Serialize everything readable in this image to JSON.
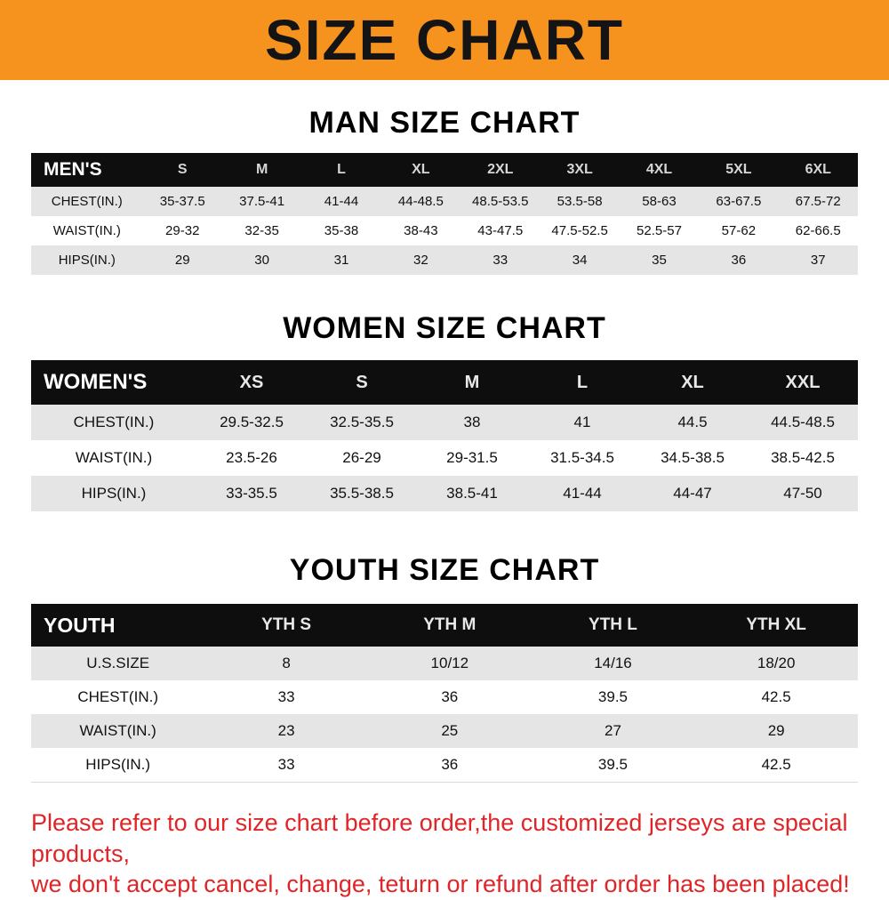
{
  "banner": {
    "title": "SIZE CHART",
    "bg_color": "#F6921E"
  },
  "headings": {
    "men": "MAN SIZE CHART",
    "women": "WOMEN SIZE CHART",
    "youth": "YOUTH SIZE CHART"
  },
  "tables": [
    {
      "key": "mens",
      "header_label": "MEN'S",
      "columns": [
        "S",
        "M",
        "L",
        "XL",
        "2XL",
        "3XL",
        "4XL",
        "5XL",
        "6XL"
      ],
      "rows": [
        {
          "label": "CHEST(IN.)",
          "values": [
            "35-37.5",
            "37.5-41",
            "41-44",
            "44-48.5",
            "48.5-53.5",
            "53.5-58",
            "58-63",
            "63-67.5",
            "67.5-72"
          ]
        },
        {
          "label": "WAIST(IN.)",
          "values": [
            "29-32",
            "32-35",
            "35-38",
            "38-43",
            "43-47.5",
            "47.5-52.5",
            "52.5-57",
            "57-62",
            "62-66.5"
          ]
        },
        {
          "label": "HIPS(IN.)",
          "values": [
            "29",
            "30",
            "31",
            "32",
            "33",
            "34",
            "35",
            "36",
            "37"
          ]
        }
      ]
    },
    {
      "key": "womens",
      "header_label": "WOMEN'S",
      "columns": [
        "XS",
        "S",
        "M",
        "L",
        "XL",
        "XXL"
      ],
      "rows": [
        {
          "label": "CHEST(IN.)",
          "values": [
            "29.5-32.5",
            "32.5-35.5",
            "38",
            "41",
            "44.5",
            "44.5-48.5"
          ]
        },
        {
          "label": "WAIST(IN.)",
          "values": [
            "23.5-26",
            "26-29",
            "29-31.5",
            "31.5-34.5",
            "34.5-38.5",
            "38.5-42.5"
          ]
        },
        {
          "label": "HIPS(IN.)",
          "values": [
            "33-35.5",
            "35.5-38.5",
            "38.5-41",
            "41-44",
            "44-47",
            "47-50"
          ]
        }
      ]
    },
    {
      "key": "youth",
      "header_label": "YOUTH",
      "columns": [
        "YTH S",
        "YTH M",
        "YTH L",
        "YTH XL"
      ],
      "rows": [
        {
          "label": "U.S.SIZE",
          "values": [
            "8",
            "10/12",
            "14/16",
            "18/20"
          ]
        },
        {
          "label": "CHEST(IN.)",
          "values": [
            "33",
            "36",
            "39.5",
            "42.5"
          ]
        },
        {
          "label": "WAIST(IN.)",
          "values": [
            "23",
            "25",
            "27",
            "29"
          ]
        },
        {
          "label": "HIPS(IN.)",
          "values": [
            "33",
            "36",
            "39.5",
            "42.5"
          ]
        }
      ]
    }
  ],
  "footer": {
    "color": "#E02528",
    "lines": [
      "Please refer to our size chart before order,the customized jerseys are special products,",
      "we don't accept cancel, change, teturn or refund after order has been placed!"
    ]
  }
}
